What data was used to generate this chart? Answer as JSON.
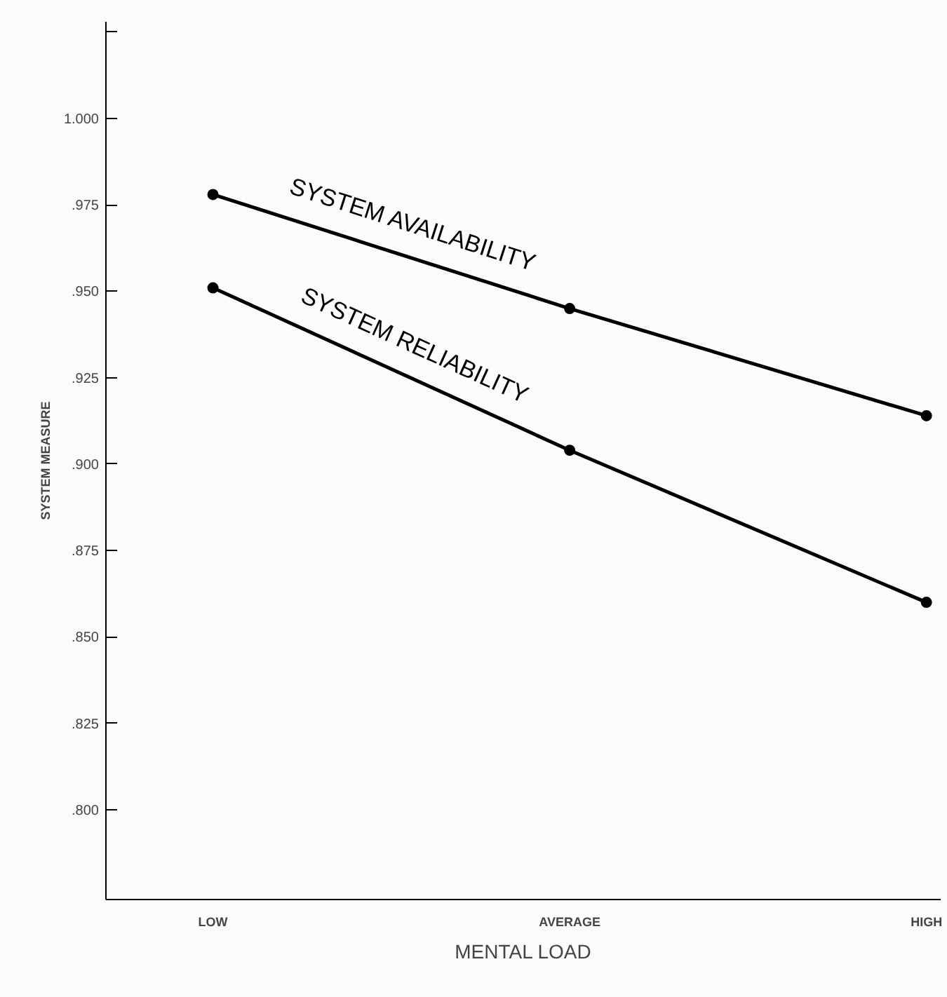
{
  "chart_data": {
    "type": "line",
    "xlabel": "MENTAL LOAD",
    "ylabel": "SYSTEM MEASURE",
    "categories": [
      "LOW",
      "AVERAGE",
      "HIGH"
    ],
    "series": [
      {
        "name": "SYSTEM AVAILABILITY",
        "color": "#000000",
        "values": [
          0.978,
          0.945,
          0.914
        ]
      },
      {
        "name": "SYSTEM RELIABILITY",
        "color": "#000000",
        "values": [
          0.951,
          0.904,
          0.86
        ]
      }
    ],
    "ylim": [
      0.774,
      1.028
    ],
    "yticks": [
      {
        "value": 0.8,
        "label": ".800"
      },
      {
        "value": 0.825,
        "label": ".825"
      },
      {
        "value": 0.85,
        "label": ".850"
      },
      {
        "value": 0.875,
        "label": ".875"
      },
      {
        "value": 0.9,
        "label": ".900"
      },
      {
        "value": 0.925,
        "label": ".925"
      },
      {
        "value": 0.95,
        "label": ".950"
      },
      {
        "value": 0.975,
        "label": ".975"
      },
      {
        "value": 1.0,
        "label": "1.000"
      },
      {
        "value": 1.025,
        "label": null
      }
    ],
    "marker": "circle",
    "line_style": "solid",
    "grid": false
  }
}
